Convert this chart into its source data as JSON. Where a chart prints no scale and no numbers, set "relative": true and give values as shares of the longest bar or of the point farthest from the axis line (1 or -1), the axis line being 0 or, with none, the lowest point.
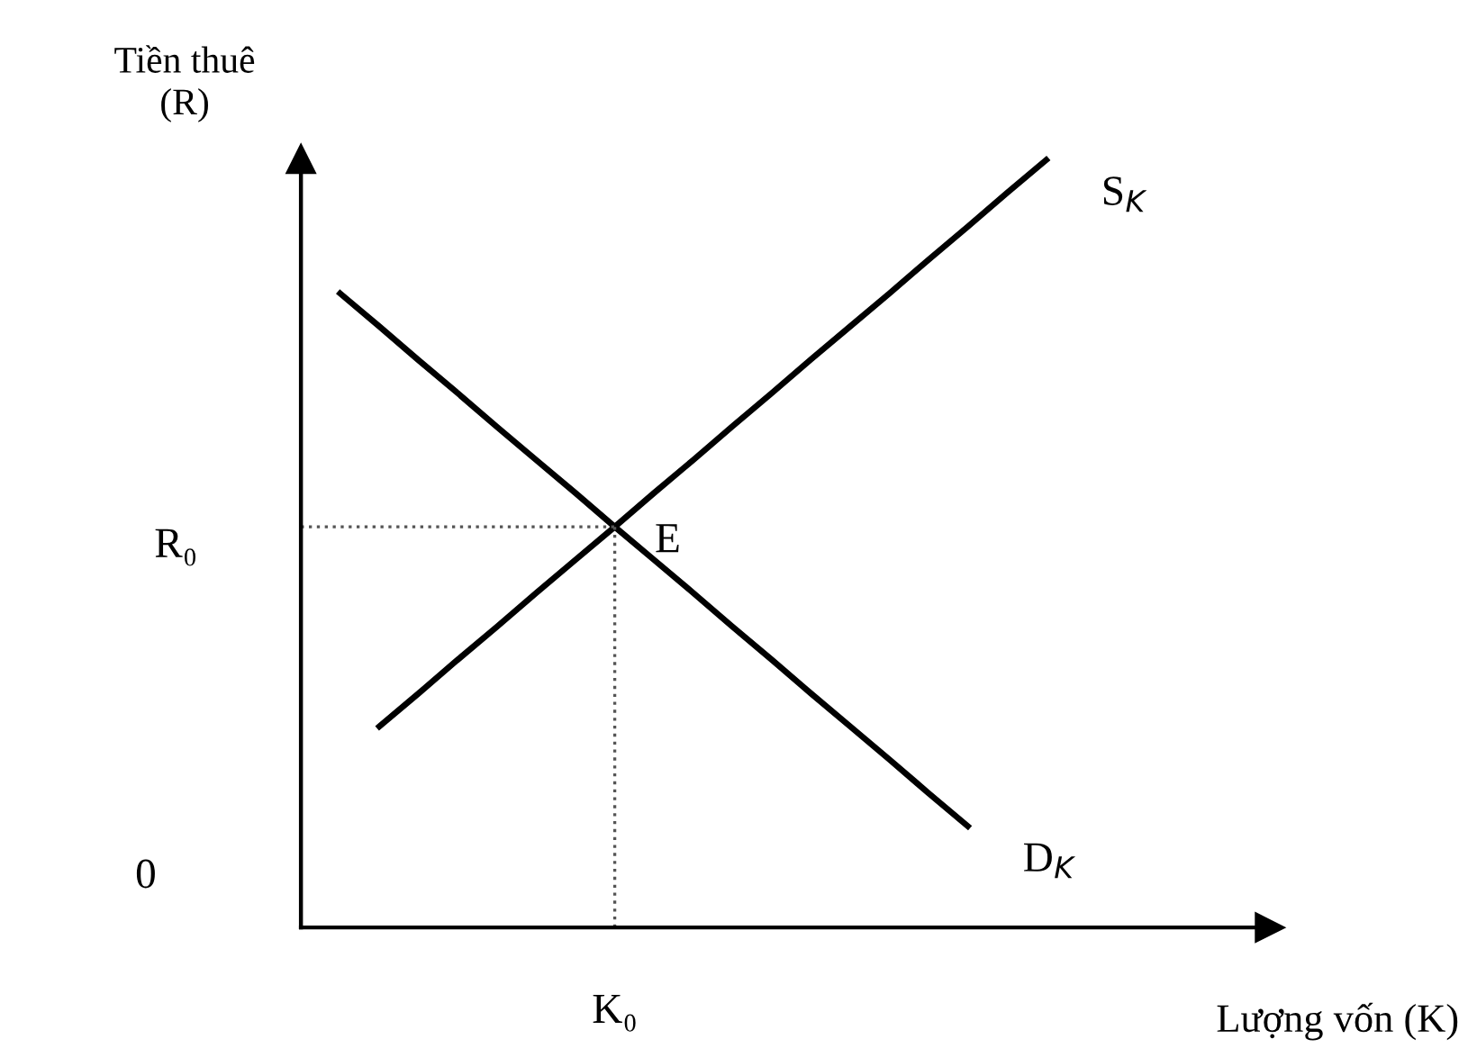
{
  "chart_data": {
    "type": "line",
    "relative": true,
    "xlabel": "Lượng vốn (K)",
    "ylabel": "Tiền thuê\n(R)",
    "categories": [
      null,
      null,
      null,
      null,
      null,
      null,
      null,
      null,
      null,
      null,
      null,
      null,
      null,
      null,
      null,
      null,
      null,
      null,
      null,
      null,
      null,
      null,
      null,
      null,
      null
    ],
    "series": [
      {
        "name": "S$_{K}$",
        "color": "#000000",
        "values": [
          null,
          null,
          0.262,
          0.305,
          0.349,
          0.392,
          0.436,
          0.479,
          0.522,
          0.566,
          0.609,
          0.653,
          0.696,
          0.74,
          0.783,
          0.826,
          0.87,
          0.913,
          0.957,
          1.0,
          null,
          null,
          null,
          null,
          null
        ]
      },
      {
        "name": "D$_{K}$",
        "color": "#000000",
        "values": [
          null,
          0.826,
          0.783,
          0.739,
          0.696,
          0.652,
          0.609,
          0.566,
          0.522,
          0.479,
          0.436,
          0.392,
          0.349,
          0.305,
          0.262,
          0.219,
          0.175,
          0.132,
          null,
          null,
          null,
          null,
          null,
          null,
          null
        ]
      }
    ],
    "ref_lines": [
      {
        "axis": "y",
        "value": 0.522,
        "label": "R₀",
        "color": "#555555",
        "line_style": "dotted"
      }
    ],
    "annotations": [
      "E",
      "0",
      "K₀"
    ],
    "line_style": "solid"
  }
}
